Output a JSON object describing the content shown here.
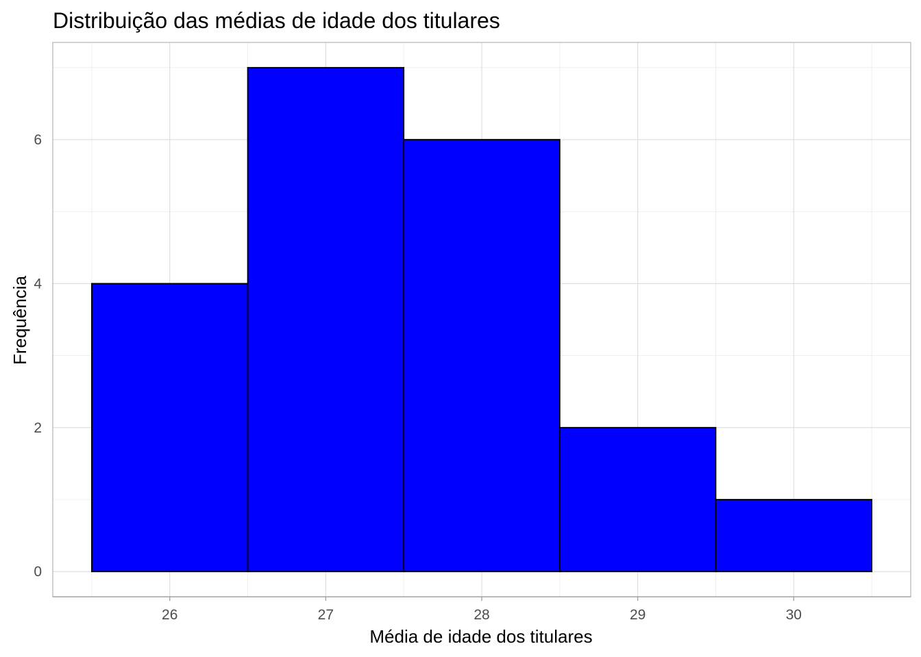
{
  "chart_data": {
    "type": "bar",
    "subtype": "histogram",
    "title": "Distribuição das médias de idade dos titulares",
    "xlabel": "Média de idade dos titulares",
    "ylabel": "Frequência",
    "bins": [
      {
        "start": 25.5,
        "end": 26.5,
        "count": 4
      },
      {
        "start": 26.5,
        "end": 27.5,
        "count": 7
      },
      {
        "start": 27.5,
        "end": 28.5,
        "count": 6
      },
      {
        "start": 28.5,
        "end": 29.5,
        "count": 2
      },
      {
        "start": 29.5,
        "end": 30.5,
        "count": 1
      }
    ],
    "xlim": [
      25.25,
      30.75
    ],
    "ylim": [
      -0.35,
      7.35
    ],
    "x_ticks": [
      26,
      27,
      28,
      29,
      30
    ],
    "y_ticks": [
      0,
      2,
      4,
      6
    ],
    "x_tick_labels": [
      "26",
      "27",
      "28",
      "29",
      "30"
    ],
    "y_tick_labels": [
      "0",
      "2",
      "4",
      "6"
    ],
    "grid": true,
    "legend": "none",
    "colors": {
      "bar_fill": "#0000ff",
      "bar_stroke": "#000000",
      "panel_border": "#b3b3b3",
      "grid": "#dcdcdc"
    }
  }
}
